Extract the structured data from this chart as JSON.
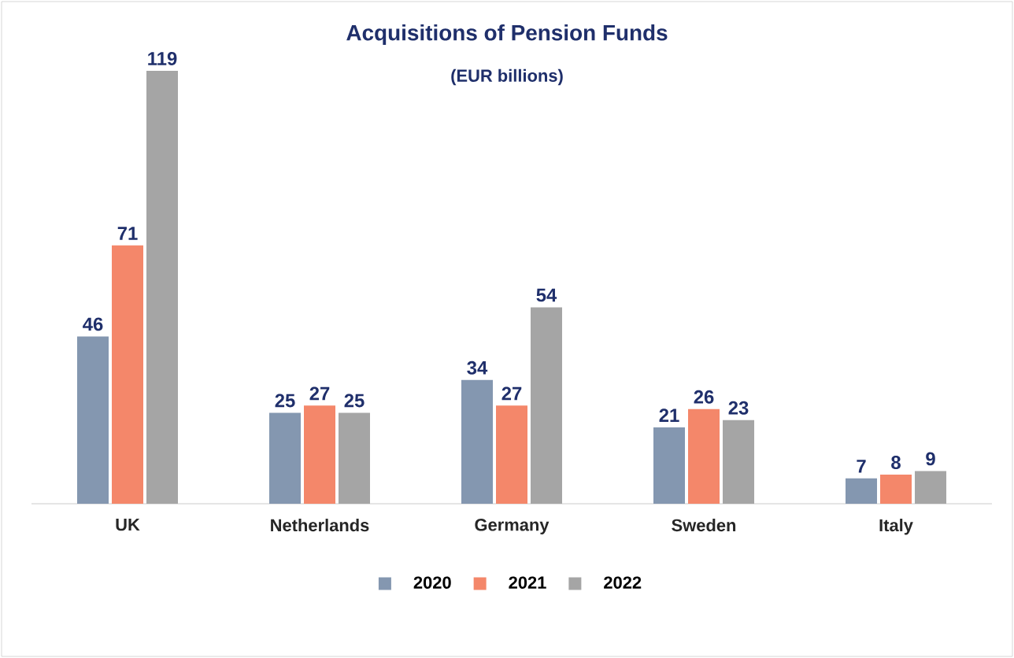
{
  "chart_data": {
    "type": "bar",
    "title": "Acquisitions of Pension Funds",
    "subtitle": "(EUR billions)",
    "categories": [
      "UK",
      "Netherlands",
      "Germany",
      "Sweden",
      "Italy"
    ],
    "series": [
      {
        "name": "2020",
        "color": "#8497b0",
        "values": [
          46,
          25,
          34,
          21,
          7
        ]
      },
      {
        "name": "2021",
        "color": "#f4876a",
        "values": [
          71,
          27,
          27,
          26,
          8
        ]
      },
      {
        "name": "2022",
        "color": "#a5a5a5",
        "values": [
          119,
          25,
          54,
          23,
          9
        ]
      }
    ],
    "data_labels": true,
    "legend": "bottom",
    "grid": false
  }
}
